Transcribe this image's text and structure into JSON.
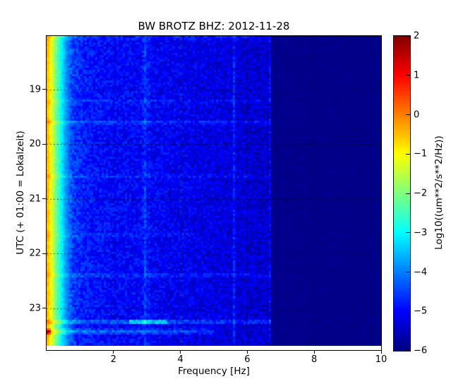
{
  "chart_data": {
    "type": "heatmap",
    "subtype": "seismic-spectrogram",
    "title": "BW BROTZ BHZ: 2012-11-28",
    "xlabel": "Frequency [Hz]",
    "ylabel": "UTC (+ 01:00 = Lokalzeit)",
    "xticks": [
      2,
      4,
      6,
      8,
      10
    ],
    "yticks": [
      19,
      20,
      21,
      22,
      23
    ],
    "x_range_hz": [
      0,
      10
    ],
    "time_range_utc": [
      "18:00",
      "23:45"
    ],
    "grid": "dotted-black-at-ticks",
    "colorbar": {
      "label": "Log10((um**2/s**2/Hz))",
      "ticks": [
        2,
        1,
        0,
        -1,
        -2,
        -3,
        -4,
        -5,
        -6
      ],
      "vmin": -6,
      "vmax": 2,
      "colormap": "jet"
    },
    "background_profile_hz_log10": [
      [
        0,
        -0.3
      ],
      [
        0.04,
        -0.5
      ],
      [
        0.1,
        -0.9
      ],
      [
        0.2,
        -1.6
      ],
      [
        0.3,
        -2.2
      ],
      [
        0.45,
        -3.1
      ],
      [
        0.6,
        -3.9
      ],
      [
        0.8,
        -4.55
      ],
      [
        1.2,
        -4.85
      ],
      [
        2,
        -5.0
      ],
      [
        3,
        -5.05
      ],
      [
        4,
        -5.15
      ],
      [
        5,
        -5.25
      ],
      [
        6.6,
        -5.4
      ],
      [
        6.73,
        -5.9
      ],
      [
        10,
        -5.95
      ]
    ],
    "noise_log10": {
      "band": 0.8,
      "band_low": 0.35,
      "quiet": 0.12
    },
    "quiet_above_hz": 6.72,
    "horizontal_events": [
      {
        "utc": "18:01",
        "row": 2,
        "h": 4,
        "boost": 0.35,
        "fmax_hz": 6.72
      },
      {
        "utc": "19:13",
        "row": 92,
        "h": 3,
        "boost": 0.3,
        "fmax_hz": 6.72
      },
      {
        "utc": "19:36",
        "row": 122,
        "h": 3,
        "boost": 0.5,
        "fmax_hz": 6.72
      },
      {
        "utc": "20:35",
        "row": 199,
        "h": 3,
        "boost": 0.35,
        "fmax_hz": 6.72
      },
      {
        "utc": "21:40",
        "row": 282,
        "h": 3,
        "boost": 0.3,
        "fmax_hz": 4.5
      },
      {
        "utc": "22:24",
        "row": 339,
        "h": 3,
        "boost": 0.45,
        "fmax_hz": 6.72
      },
      {
        "utc": "23:14",
        "row": 405,
        "h": 4,
        "boost": 0.8,
        "fmax_hz": 6.72,
        "patch": {
          "f0": 2.5,
          "f1": 3.6,
          "boost": 1.4
        }
      },
      {
        "utc": "23:25",
        "row": 419,
        "h": 4,
        "boost": 0.85,
        "fmax_hz": 5.0,
        "red_left": 1.7
      }
    ],
    "vertical_lines": [
      {
        "f_hz": 2.95,
        "w": 12,
        "boost": 0.18
      },
      {
        "f_hz": 2.95,
        "w": 4,
        "boost": 0.3
      },
      {
        "f_hz": 4.0,
        "w": 2,
        "boost": 0.15
      },
      {
        "f_hz": 5.58,
        "w": 3,
        "boost": 0.5
      },
      {
        "f_hz": 6.68,
        "w": 3,
        "boost": 0.6
      },
      {
        "f_hz": 6.78,
        "w": 2,
        "boost": 0.7,
        "row0": 349,
        "row1": 382
      }
    ]
  }
}
